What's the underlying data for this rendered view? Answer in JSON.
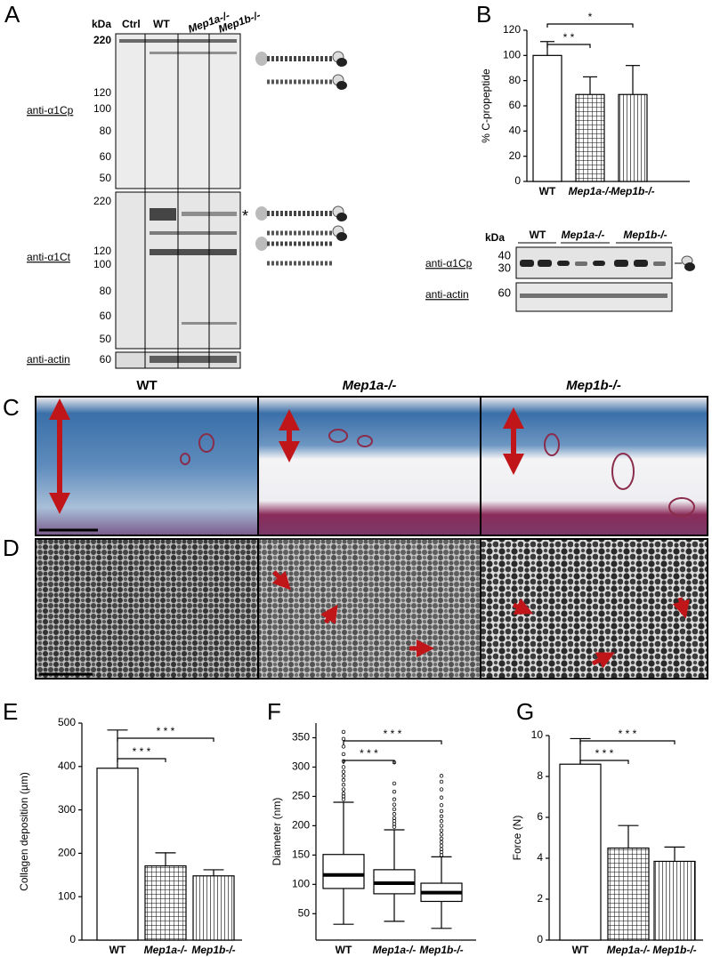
{
  "panel_labels": [
    "A",
    "B",
    "C",
    "D",
    "E",
    "F",
    "G"
  ],
  "blot_a": {
    "kda": "kDa",
    "lanes": [
      "Ctrl",
      "WT",
      "Mep1a-/-",
      "Mep1b-/-"
    ],
    "top": {
      "antibody": "anti-α1Cp",
      "markers": [
        "220",
        "120",
        "100",
        "80",
        "60",
        "50"
      ]
    },
    "bottom": {
      "antibody": "anti-α1Ct",
      "markers": [
        "220",
        "120",
        "100",
        "80",
        "60",
        "50"
      ],
      "star": "*"
    },
    "actin": {
      "antibody": "anti-actin",
      "marker": "60"
    }
  },
  "blot_b": {
    "kda": "kDa",
    "groups": [
      "WT",
      "Mep1a-/-",
      "Mep1b-/-"
    ],
    "rows": [
      {
        "antibody": "anti-α1Cp",
        "markers": [
          "40",
          "30"
        ]
      },
      {
        "antibody": "anti-actin",
        "markers": [
          "60"
        ]
      }
    ]
  },
  "histology": {
    "columns": [
      "WT",
      "Mep1a-/-",
      "Mep1b-/-"
    ]
  },
  "chart_data": [
    {
      "type": "bar",
      "ylabel": "% C-propeptide",
      "categories": [
        "WT",
        "Mep1a-/-",
        "Mep1b-/-"
      ],
      "values": [
        100,
        69,
        69
      ],
      "errors": [
        11,
        14,
        23
      ],
      "fills": [
        "white",
        "grid",
        "vlines"
      ],
      "ylim": [
        0,
        120
      ],
      "yticks": [
        0,
        20,
        40,
        60,
        80,
        100,
        120
      ],
      "significance": [
        "* *",
        "*"
      ]
    },
    {
      "type": "bar",
      "ylabel": "Collagen deposition (µm)",
      "categories": [
        "WT",
        "Mep1a-/-",
        "Mep1b-/-"
      ],
      "values": [
        396,
        171,
        148
      ],
      "errors": [
        88,
        30,
        14
      ],
      "fills": [
        "white",
        "grid",
        "vlines"
      ],
      "ylim": [
        0,
        500
      ],
      "yticks": [
        0,
        100,
        200,
        300,
        400,
        500
      ],
      "significance": [
        "* * *",
        "* * *"
      ]
    },
    {
      "type": "box",
      "ylabel": "Diameter (nm)",
      "categories": [
        "WT",
        "Mep1a-/-",
        "Mep1b-/-"
      ],
      "min": [
        32,
        37,
        25
      ],
      "q1": [
        93,
        84,
        71
      ],
      "median": [
        116,
        102,
        86
      ],
      "q3": [
        151,
        125,
        102
      ],
      "max": [
        240,
        193,
        147
      ],
      "outliers": [
        [
          245,
          250,
          255,
          262,
          270,
          278,
          285,
          292,
          300,
          310,
          322,
          335,
          348,
          360
        ],
        [
          198,
          203,
          208,
          213,
          220,
          228,
          236,
          245,
          258,
          272,
          308
        ],
        [
          150,
          155,
          160,
          166,
          172,
          178,
          185,
          192,
          200,
          208,
          216,
          225,
          235,
          248,
          262,
          275,
          285
        ]
      ],
      "ylim": [
        5,
        375
      ],
      "yticks": [
        50,
        100,
        150,
        200,
        250,
        300,
        350
      ],
      "significance": [
        "* * *",
        "* * *"
      ]
    },
    {
      "type": "bar",
      "ylabel": "Force (N)",
      "categories": [
        "WT",
        "Mep1a-/-",
        "Mep1b-/-"
      ],
      "values": [
        8.6,
        4.5,
        3.85
      ],
      "errors": [
        1.25,
        1.1,
        0.7
      ],
      "fills": [
        "white",
        "grid",
        "vlines"
      ],
      "ylim": [
        0,
        10
      ],
      "yticks": [
        0,
        2,
        4,
        6,
        8,
        10
      ],
      "significance": [
        "* * *",
        "* * *"
      ]
    }
  ]
}
